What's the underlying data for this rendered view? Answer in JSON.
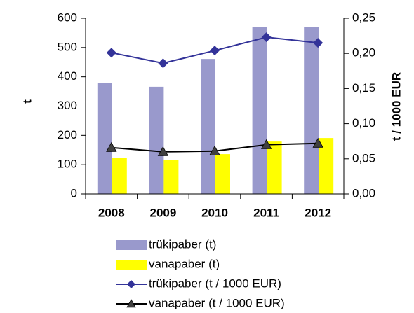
{
  "chart_data": {
    "type": "combo",
    "ylabel": "t",
    "y2label": "t / 1000 EUR",
    "categories": [
      "2008",
      "2009",
      "2010",
      "2011",
      "2012"
    ],
    "ylim": [
      0,
      600
    ],
    "yticks": [
      0,
      100,
      200,
      300,
      400,
      500,
      600
    ],
    "y2lim": [
      0,
      0.25
    ],
    "y2ticks": [
      {
        "value": 0,
        "label": "0,00"
      },
      {
        "value": 0.05,
        "label": "0,05"
      },
      {
        "value": 0.1,
        "label": "0,10"
      },
      {
        "value": 0.15,
        "label": "0,15"
      },
      {
        "value": 0.2,
        "label": "0,20"
      },
      {
        "value": 0.25,
        "label": "0,25"
      }
    ],
    "series": [
      {
        "name": "trükipaber (t)",
        "type": "bar",
        "color": "#9999cc",
        "values": [
          378,
          366,
          461,
          569,
          571
        ]
      },
      {
        "name": "vanapaber (t)",
        "type": "bar",
        "color": "#ffff00",
        "values": [
          124,
          117,
          136,
          179,
          191
        ]
      },
      {
        "name": "trükipaber (t / 1000 EUR)",
        "type": "line",
        "axis": "y2",
        "marker": "diamond",
        "color": "#333399",
        "values": [
          0.201,
          0.186,
          0.204,
          0.223,
          0.215
        ]
      },
      {
        "name": "vanapaber (t / 1000 EUR)",
        "type": "line",
        "axis": "y2",
        "marker": "triangle",
        "color": "#000000",
        "marker_color": "#404040",
        "values": [
          0.066,
          0.06,
          0.061,
          0.07,
          0.072
        ]
      }
    ]
  }
}
